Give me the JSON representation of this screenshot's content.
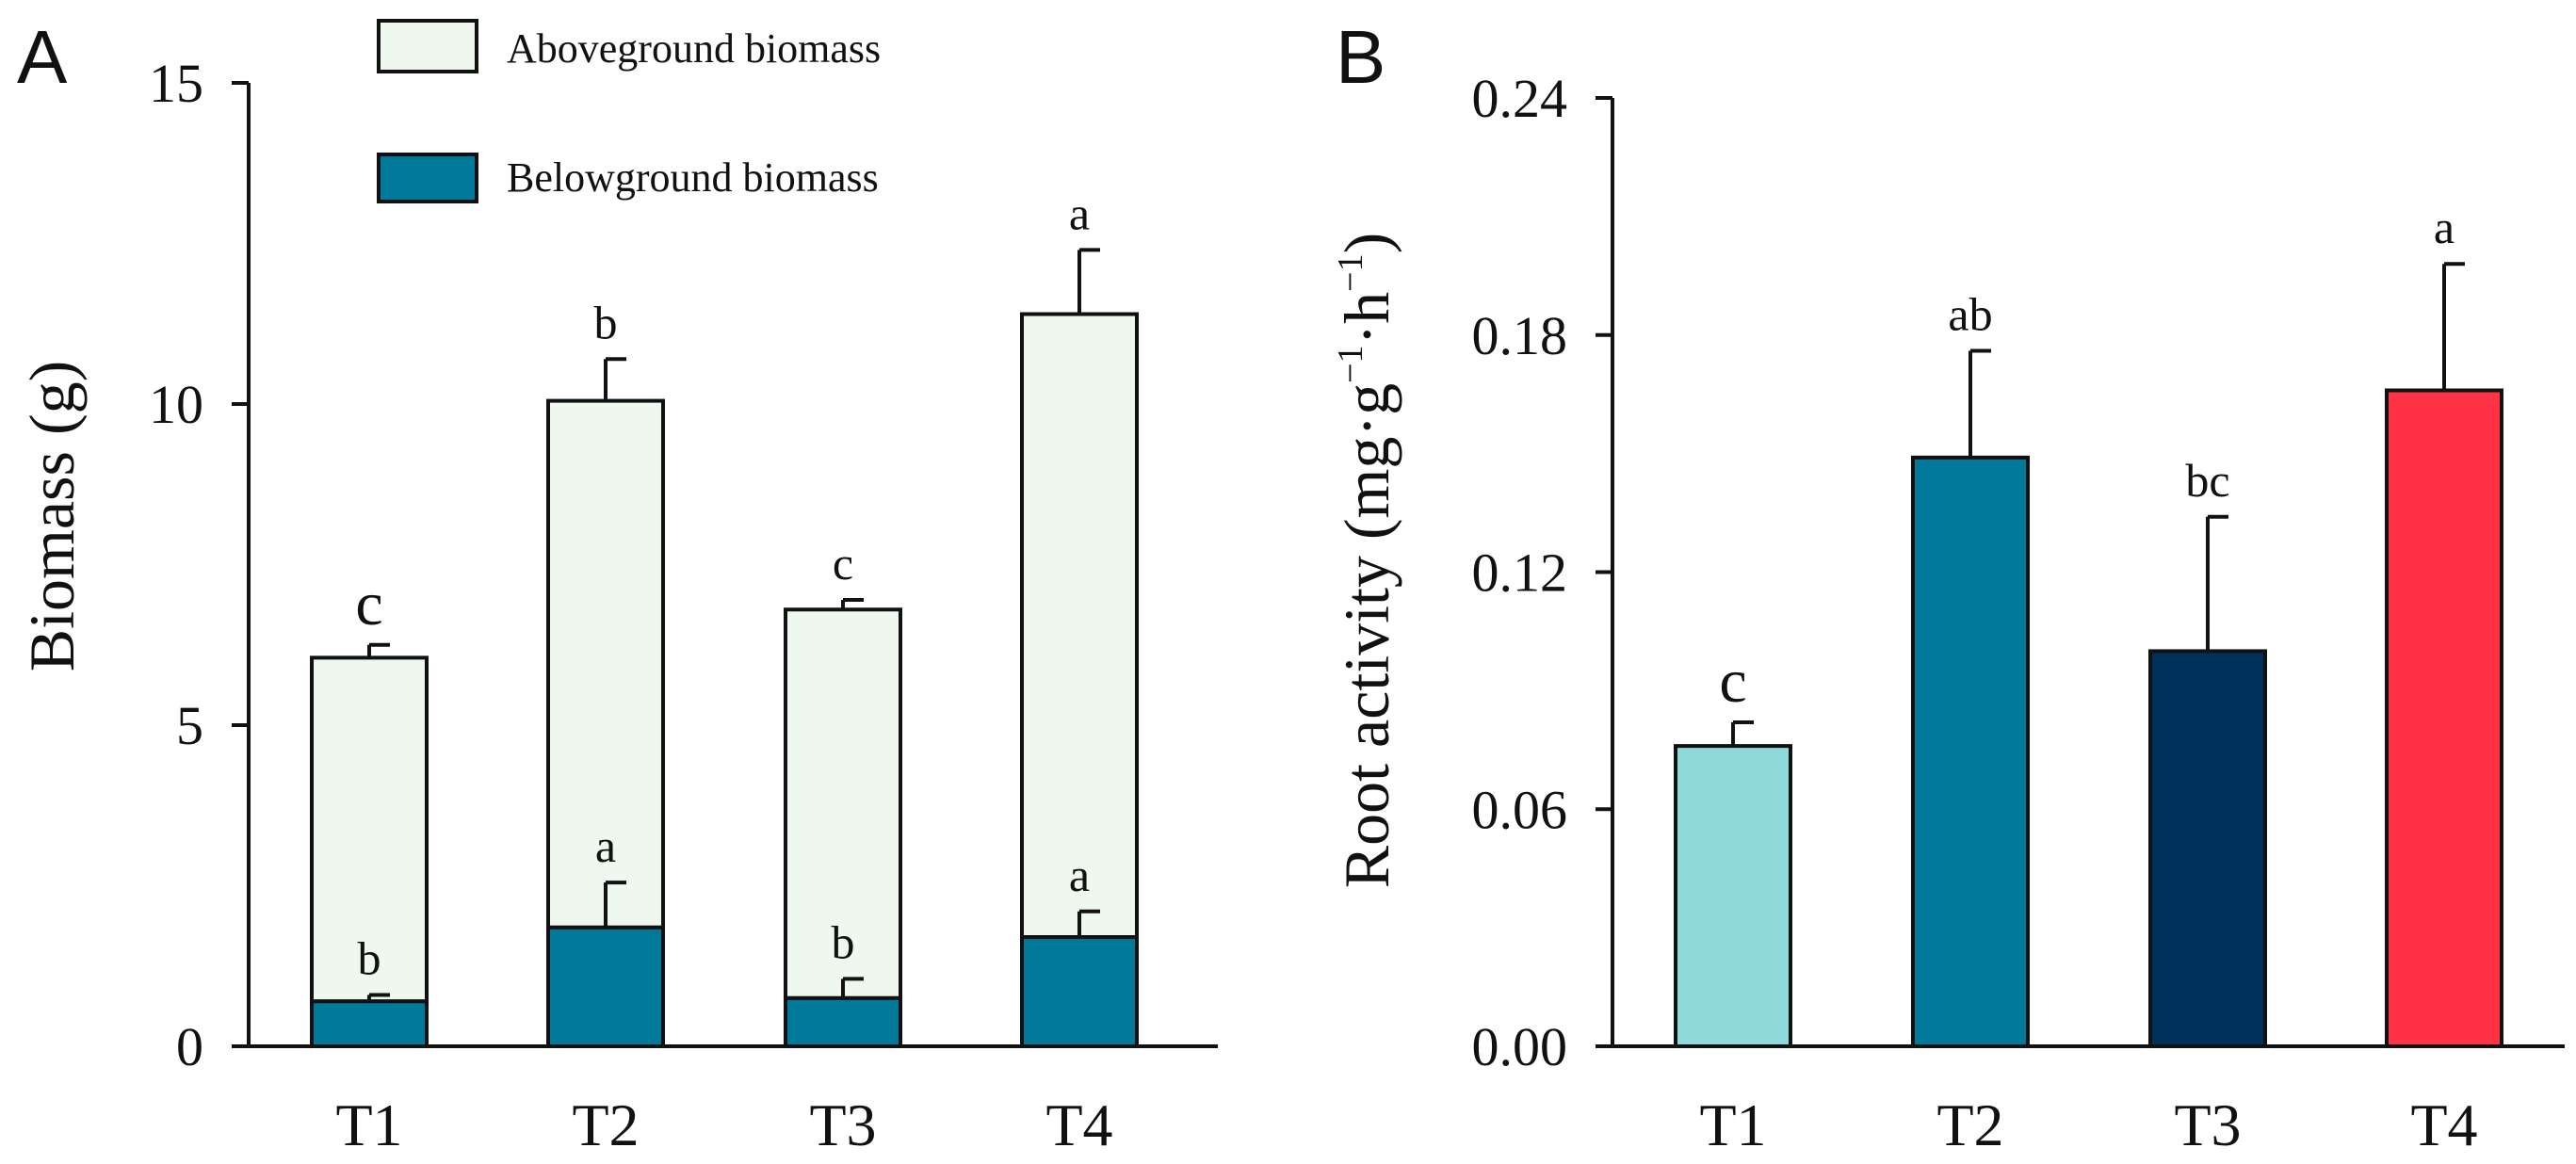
{
  "chart_data": [
    {
      "type": "bar",
      "stacked": true,
      "panel_label": "A",
      "ylabel": "Biomass (g)",
      "xlabel": "",
      "ylim": [
        0,
        15
      ],
      "yticks": [
        0,
        5,
        10,
        15
      ],
      "categories": [
        "T1",
        "T2",
        "T3",
        "T4"
      ],
      "legend": {
        "position": "top",
        "entries": [
          "Aboveground biomass",
          "Belowground biomass"
        ]
      },
      "series": [
        {
          "name": "Belowground biomass",
          "color": "#00799A",
          "values": [
            0.7,
            1.85,
            0.75,
            1.7
          ],
          "errors": [
            0.1,
            0.7,
            0.3,
            0.4
          ],
          "letters": [
            "b",
            "a",
            "b",
            "a"
          ]
        },
        {
          "name": "Aboveground biomass",
          "color": "#EEF8EF",
          "values": [
            5.35,
            8.2,
            6.05,
            9.7
          ],
          "errors": [
            0.2,
            0.65,
            0.15,
            1.0
          ],
          "letters": [
            "c",
            "b",
            "c",
            "a"
          ]
        }
      ]
    },
    {
      "type": "bar",
      "panel_label": "B",
      "ylabel_main": "Root activity (mg·g",
      "ylabel_sup1": "−1",
      "ylabel_mid": "·h",
      "ylabel_sup2": "−1",
      "ylabel_end": ")",
      "xlabel": "",
      "ylim": [
        0,
        0.24
      ],
      "yticks": [
        "0.00",
        "0.06",
        "0.12",
        "0.18",
        "0.24"
      ],
      "categories": [
        "T1",
        "T2",
        "T3",
        "T4"
      ],
      "values": [
        0.076,
        0.149,
        0.1,
        0.166
      ],
      "errors": [
        0.006,
        0.027,
        0.034,
        0.032
      ],
      "letters": [
        "c",
        "ab",
        "bc",
        "a"
      ],
      "colors": [
        "#8FD9DB",
        "#00799A",
        "#00315A",
        "#FF3345"
      ]
    }
  ]
}
